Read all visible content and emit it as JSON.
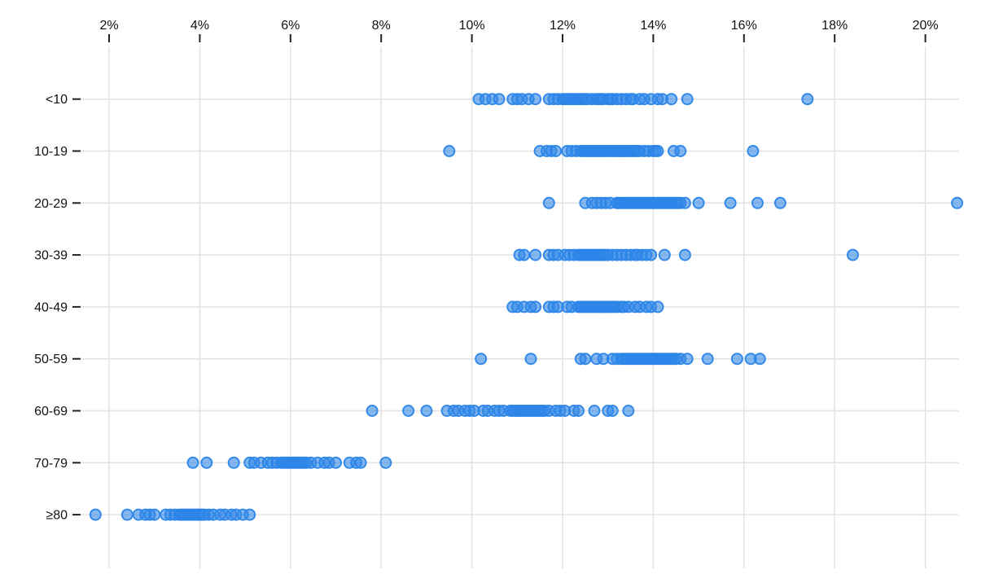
{
  "chart_data": {
    "type": "scatter",
    "variant": "strip-plot",
    "title": "",
    "xlabel": "",
    "ylabel": "",
    "x_axis": {
      "position": "top",
      "unit": "%",
      "min": 2,
      "max": 20,
      "tick_values": [
        2,
        4,
        6,
        8,
        10,
        12,
        14,
        16,
        18,
        20
      ],
      "tick_labels": [
        "2%",
        "4%",
        "6%",
        "8%",
        "10%",
        "12%",
        "14%",
        "16%",
        "18%",
        "20%"
      ],
      "grid": true
    },
    "y_axis": {
      "categories": [
        "<10",
        "10-19",
        "20-29",
        "30-39",
        "40-49",
        "50-59",
        "60-69",
        "70-79",
        "≥80"
      ],
      "grid": true
    },
    "legend": null,
    "marker": {
      "shape": "circle",
      "fill": "#3488e8",
      "fill_opacity": 0.6,
      "stroke": "#2b85e8",
      "stroke_opacity": 0.95,
      "radius_px": 6.5,
      "stroke_width_px": 2
    },
    "colors": {
      "accent": "#2b85e8",
      "grid": "#e2e2e2",
      "axis_text": "#111111",
      "tick_mark": "#222222",
      "background": "#ffffff"
    },
    "series": [
      {
        "category": "<10",
        "values": [
          10.15,
          10.3,
          10.45,
          10.6,
          10.9,
          11.0,
          11.1,
          11.25,
          11.4,
          11.7,
          11.8,
          11.9,
          12.0,
          12.05,
          12.1,
          12.15,
          12.2,
          12.25,
          12.3,
          12.35,
          12.4,
          12.45,
          12.5,
          12.55,
          12.65,
          12.75,
          12.8,
          12.85,
          12.9,
          13.0,
          13.05,
          13.1,
          13.2,
          13.3,
          13.4,
          13.5,
          13.55,
          13.7,
          13.8,
          13.95,
          14.1,
          14.2,
          14.4,
          14.75,
          17.4
        ]
      },
      {
        "category": "10-19",
        "values": [
          9.5,
          11.5,
          11.65,
          11.75,
          11.85,
          12.1,
          12.2,
          12.3,
          12.4,
          12.45,
          12.5,
          12.55,
          12.6,
          12.65,
          12.7,
          12.75,
          12.8,
          12.85,
          12.9,
          12.95,
          13.0,
          13.05,
          13.1,
          13.15,
          13.2,
          13.25,
          13.3,
          13.35,
          13.4,
          13.45,
          13.5,
          13.55,
          13.6,
          13.65,
          13.7,
          13.8,
          13.9,
          14.0,
          14.05,
          14.1,
          14.45,
          14.6,
          16.2
        ]
      },
      {
        "category": "20-29",
        "values": [
          11.7,
          12.5,
          12.65,
          12.75,
          12.85,
          12.95,
          13.05,
          13.2,
          13.25,
          13.3,
          13.35,
          13.4,
          13.45,
          13.5,
          13.55,
          13.6,
          13.65,
          13.7,
          13.75,
          13.8,
          13.85,
          13.9,
          13.95,
          14.0,
          14.05,
          14.1,
          14.15,
          14.2,
          14.25,
          14.3,
          14.35,
          14.4,
          14.45,
          14.5,
          14.55,
          14.6,
          14.7,
          15.0,
          15.7,
          16.3,
          16.8,
          20.7
        ]
      },
      {
        "category": "30-39",
        "values": [
          11.05,
          11.15,
          11.4,
          11.7,
          11.8,
          11.9,
          12.05,
          12.15,
          12.25,
          12.35,
          12.4,
          12.45,
          12.5,
          12.55,
          12.6,
          12.65,
          12.7,
          12.75,
          12.8,
          12.85,
          12.9,
          12.95,
          13.0,
          13.1,
          13.2,
          13.3,
          13.4,
          13.5,
          13.6,
          13.65,
          13.75,
          13.85,
          13.95,
          14.25,
          14.7,
          18.4
        ]
      },
      {
        "category": "40-49",
        "values": [
          10.9,
          11.0,
          11.15,
          11.3,
          11.4,
          11.7,
          11.8,
          11.9,
          12.1,
          12.2,
          12.35,
          12.4,
          12.45,
          12.5,
          12.55,
          12.6,
          12.65,
          12.7,
          12.75,
          12.8,
          12.85,
          12.9,
          12.95,
          13.0,
          13.05,
          13.1,
          13.15,
          13.2,
          13.3,
          13.35,
          13.45,
          13.6,
          13.7,
          13.85,
          13.95,
          14.1
        ]
      },
      {
        "category": "50-59",
        "values": [
          10.2,
          11.3,
          12.4,
          12.5,
          12.75,
          12.9,
          13.1,
          13.2,
          13.3,
          13.35,
          13.4,
          13.45,
          13.5,
          13.55,
          13.6,
          13.65,
          13.7,
          13.75,
          13.8,
          13.85,
          13.9,
          13.95,
          14.0,
          14.05,
          14.1,
          14.15,
          14.2,
          14.25,
          14.3,
          14.35,
          14.4,
          14.45,
          14.5,
          14.6,
          14.75,
          15.2,
          15.85,
          16.15,
          16.35
        ]
      },
      {
        "category": "60-69",
        "values": [
          7.8,
          8.6,
          9.0,
          9.45,
          9.6,
          9.7,
          9.85,
          9.95,
          10.05,
          10.25,
          10.35,
          10.5,
          10.6,
          10.7,
          10.85,
          10.9,
          10.95,
          11.0,
          11.05,
          11.1,
          11.15,
          11.2,
          11.25,
          11.3,
          11.35,
          11.4,
          11.45,
          11.5,
          11.55,
          11.6,
          11.7,
          11.85,
          11.95,
          12.05,
          12.25,
          12.35,
          12.7,
          13.0,
          13.1,
          13.45
        ]
      },
      {
        "category": "70-79",
        "values": [
          3.85,
          4.15,
          4.75,
          5.1,
          5.2,
          5.35,
          5.5,
          5.6,
          5.7,
          5.8,
          5.85,
          5.9,
          5.95,
          6.0,
          6.05,
          6.1,
          6.15,
          6.2,
          6.25,
          6.3,
          6.35,
          6.45,
          6.6,
          6.75,
          6.85,
          7.0,
          7.3,
          7.45,
          7.55,
          8.1
        ]
      },
      {
        "category": "≥80",
        "values": [
          1.7,
          2.4,
          2.65,
          2.8,
          2.9,
          3.0,
          3.25,
          3.35,
          3.45,
          3.55,
          3.6,
          3.65,
          3.7,
          3.75,
          3.8,
          3.85,
          3.9,
          3.95,
          4.0,
          4.05,
          4.1,
          4.2,
          4.3,
          4.45,
          4.55,
          4.7,
          4.8,
          4.95,
          5.1
        ]
      }
    ]
  }
}
